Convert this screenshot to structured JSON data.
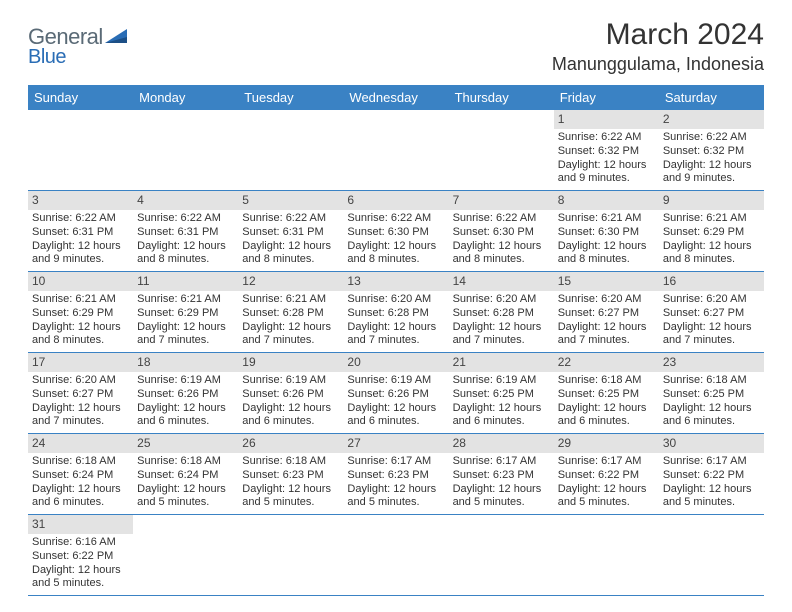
{
  "logo": {
    "part1": "General",
    "part2": "Blue"
  },
  "title": "March 2024",
  "location": "Manunggulama, Indonesia",
  "colors": {
    "header_bg": "#3a82c4",
    "header_text": "#ffffff",
    "daynum_bg": "#e3e3e3",
    "rule": "#3a82c4",
    "logo_gray": "#5a6a76",
    "logo_blue": "#2a6db5"
  },
  "weekdays": [
    "Sunday",
    "Monday",
    "Tuesday",
    "Wednesday",
    "Thursday",
    "Friday",
    "Saturday"
  ],
  "weeks": [
    [
      null,
      null,
      null,
      null,
      null,
      {
        "n": "1",
        "sr": "Sunrise: 6:22 AM",
        "ss": "Sunset: 6:32 PM",
        "dl": "Daylight: 12 hours and 9 minutes."
      },
      {
        "n": "2",
        "sr": "Sunrise: 6:22 AM",
        "ss": "Sunset: 6:32 PM",
        "dl": "Daylight: 12 hours and 9 minutes."
      }
    ],
    [
      {
        "n": "3",
        "sr": "Sunrise: 6:22 AM",
        "ss": "Sunset: 6:31 PM",
        "dl": "Daylight: 12 hours and 9 minutes."
      },
      {
        "n": "4",
        "sr": "Sunrise: 6:22 AM",
        "ss": "Sunset: 6:31 PM",
        "dl": "Daylight: 12 hours and 8 minutes."
      },
      {
        "n": "5",
        "sr": "Sunrise: 6:22 AM",
        "ss": "Sunset: 6:31 PM",
        "dl": "Daylight: 12 hours and 8 minutes."
      },
      {
        "n": "6",
        "sr": "Sunrise: 6:22 AM",
        "ss": "Sunset: 6:30 PM",
        "dl": "Daylight: 12 hours and 8 minutes."
      },
      {
        "n": "7",
        "sr": "Sunrise: 6:22 AM",
        "ss": "Sunset: 6:30 PM",
        "dl": "Daylight: 12 hours and 8 minutes."
      },
      {
        "n": "8",
        "sr": "Sunrise: 6:21 AM",
        "ss": "Sunset: 6:30 PM",
        "dl": "Daylight: 12 hours and 8 minutes."
      },
      {
        "n": "9",
        "sr": "Sunrise: 6:21 AM",
        "ss": "Sunset: 6:29 PM",
        "dl": "Daylight: 12 hours and 8 minutes."
      }
    ],
    [
      {
        "n": "10",
        "sr": "Sunrise: 6:21 AM",
        "ss": "Sunset: 6:29 PM",
        "dl": "Daylight: 12 hours and 8 minutes."
      },
      {
        "n": "11",
        "sr": "Sunrise: 6:21 AM",
        "ss": "Sunset: 6:29 PM",
        "dl": "Daylight: 12 hours and 7 minutes."
      },
      {
        "n": "12",
        "sr": "Sunrise: 6:21 AM",
        "ss": "Sunset: 6:28 PM",
        "dl": "Daylight: 12 hours and 7 minutes."
      },
      {
        "n": "13",
        "sr": "Sunrise: 6:20 AM",
        "ss": "Sunset: 6:28 PM",
        "dl": "Daylight: 12 hours and 7 minutes."
      },
      {
        "n": "14",
        "sr": "Sunrise: 6:20 AM",
        "ss": "Sunset: 6:28 PM",
        "dl": "Daylight: 12 hours and 7 minutes."
      },
      {
        "n": "15",
        "sr": "Sunrise: 6:20 AM",
        "ss": "Sunset: 6:27 PM",
        "dl": "Daylight: 12 hours and 7 minutes."
      },
      {
        "n": "16",
        "sr": "Sunrise: 6:20 AM",
        "ss": "Sunset: 6:27 PM",
        "dl": "Daylight: 12 hours and 7 minutes."
      }
    ],
    [
      {
        "n": "17",
        "sr": "Sunrise: 6:20 AM",
        "ss": "Sunset: 6:27 PM",
        "dl": "Daylight: 12 hours and 7 minutes."
      },
      {
        "n": "18",
        "sr": "Sunrise: 6:19 AM",
        "ss": "Sunset: 6:26 PM",
        "dl": "Daylight: 12 hours and 6 minutes."
      },
      {
        "n": "19",
        "sr": "Sunrise: 6:19 AM",
        "ss": "Sunset: 6:26 PM",
        "dl": "Daylight: 12 hours and 6 minutes."
      },
      {
        "n": "20",
        "sr": "Sunrise: 6:19 AM",
        "ss": "Sunset: 6:26 PM",
        "dl": "Daylight: 12 hours and 6 minutes."
      },
      {
        "n": "21",
        "sr": "Sunrise: 6:19 AM",
        "ss": "Sunset: 6:25 PM",
        "dl": "Daylight: 12 hours and 6 minutes."
      },
      {
        "n": "22",
        "sr": "Sunrise: 6:18 AM",
        "ss": "Sunset: 6:25 PM",
        "dl": "Daylight: 12 hours and 6 minutes."
      },
      {
        "n": "23",
        "sr": "Sunrise: 6:18 AM",
        "ss": "Sunset: 6:25 PM",
        "dl": "Daylight: 12 hours and 6 minutes."
      }
    ],
    [
      {
        "n": "24",
        "sr": "Sunrise: 6:18 AM",
        "ss": "Sunset: 6:24 PM",
        "dl": "Daylight: 12 hours and 6 minutes."
      },
      {
        "n": "25",
        "sr": "Sunrise: 6:18 AM",
        "ss": "Sunset: 6:24 PM",
        "dl": "Daylight: 12 hours and 5 minutes."
      },
      {
        "n": "26",
        "sr": "Sunrise: 6:18 AM",
        "ss": "Sunset: 6:23 PM",
        "dl": "Daylight: 12 hours and 5 minutes."
      },
      {
        "n": "27",
        "sr": "Sunrise: 6:17 AM",
        "ss": "Sunset: 6:23 PM",
        "dl": "Daylight: 12 hours and 5 minutes."
      },
      {
        "n": "28",
        "sr": "Sunrise: 6:17 AM",
        "ss": "Sunset: 6:23 PM",
        "dl": "Daylight: 12 hours and 5 minutes."
      },
      {
        "n": "29",
        "sr": "Sunrise: 6:17 AM",
        "ss": "Sunset: 6:22 PM",
        "dl": "Daylight: 12 hours and 5 minutes."
      },
      {
        "n": "30",
        "sr": "Sunrise: 6:17 AM",
        "ss": "Sunset: 6:22 PM",
        "dl": "Daylight: 12 hours and 5 minutes."
      }
    ],
    [
      {
        "n": "31",
        "sr": "Sunrise: 6:16 AM",
        "ss": "Sunset: 6:22 PM",
        "dl": "Daylight: 12 hours and 5 minutes."
      },
      null,
      null,
      null,
      null,
      null,
      null
    ]
  ]
}
